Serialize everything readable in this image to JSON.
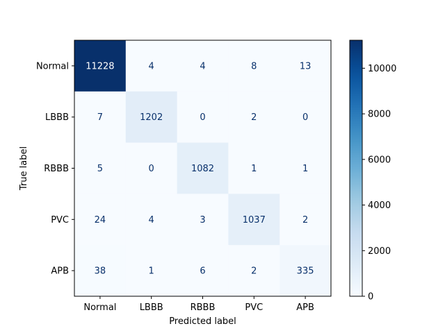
{
  "chart_data": {
    "type": "heatmap",
    "title": "",
    "xlabel": "Predicted label",
    "ylabel": "True label",
    "x_categories": [
      "Normal",
      "LBBB",
      "RBBB",
      "PVC",
      "APB"
    ],
    "y_categories": [
      "Normal",
      "LBBB",
      "RBBB",
      "PVC",
      "APB"
    ],
    "values": [
      [
        11228,
        4,
        4,
        8,
        13
      ],
      [
        7,
        1202,
        0,
        2,
        0
      ],
      [
        5,
        0,
        1082,
        1,
        1
      ],
      [
        24,
        4,
        3,
        1037,
        2
      ],
      [
        38,
        1,
        6,
        2,
        335
      ]
    ],
    "colormap": "Blues",
    "color_range": [
      0,
      11228
    ],
    "colorbar_ticks": [
      0,
      2000,
      4000,
      6000,
      8000,
      10000
    ],
    "text_color_light": "#ffffff",
    "text_color_dark": "#08306b",
    "axis_color": "#000000"
  }
}
